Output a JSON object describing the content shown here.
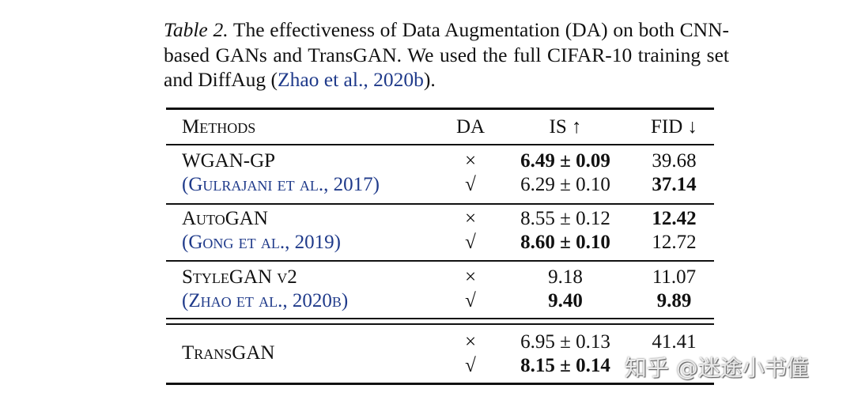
{
  "caption": {
    "label": "Table 2.",
    "text_before_cite": " The effectiveness of Data Augmentation (DA) on both CNN-based GANs and TransGAN. We used the full CIFAR-10 training set and DiffAug (",
    "cite": "Zhao et al., 2020b",
    "text_after_cite": ")."
  },
  "table": {
    "headers": [
      "Methods",
      "DA",
      "IS ↑",
      "FID ↓"
    ],
    "groups": [
      {
        "method": "WGAN-GP",
        "cite": "(Gulrajani et al., 2017)",
        "rows": [
          {
            "da": "×",
            "is": "6.49",
            "is_pm": "± 0.09",
            "is_bold": true,
            "fid": "39.68",
            "fid_bold": false
          },
          {
            "da": "√",
            "is": "6.29",
            "is_pm": "± 0.10",
            "is_bold": false,
            "fid": "37.14",
            "fid_bold": true
          }
        ]
      },
      {
        "method": "AutoGAN",
        "cite": "(Gong et al., 2019)",
        "rows": [
          {
            "da": "×",
            "is": "8.55",
            "is_pm": "± 0.12",
            "is_bold": false,
            "fid": "12.42",
            "fid_bold": true
          },
          {
            "da": "√",
            "is": "8.60",
            "is_pm": "± 0.10",
            "is_bold": true,
            "fid": "12.72",
            "fid_bold": false
          }
        ]
      },
      {
        "method": "StyleGAN v2",
        "cite": "(Zhao et al., 2020b)",
        "rows": [
          {
            "da": "×",
            "is": "9.18",
            "is_pm": "",
            "is_bold": false,
            "fid": "11.07",
            "fid_bold": false
          },
          {
            "da": "√",
            "is": "9.40",
            "is_pm": "",
            "is_bold": true,
            "fid": "9.89",
            "fid_bold": true
          }
        ]
      },
      {
        "method": "TransGAN",
        "cite": "",
        "rows": [
          {
            "da": "×",
            "is": "6.95",
            "is_pm": "± 0.13",
            "is_bold": false,
            "fid": "41.41",
            "fid_bold": false
          },
          {
            "da": "√",
            "is": "8.15",
            "is_pm": "± 0.14",
            "is_bold": true,
            "fid": "",
            "fid_bold": false
          }
        ]
      }
    ]
  },
  "watermark": "知乎 @迷途小书僮",
  "colors": {
    "citation": "#1f3a8a",
    "text": "#111111"
  }
}
